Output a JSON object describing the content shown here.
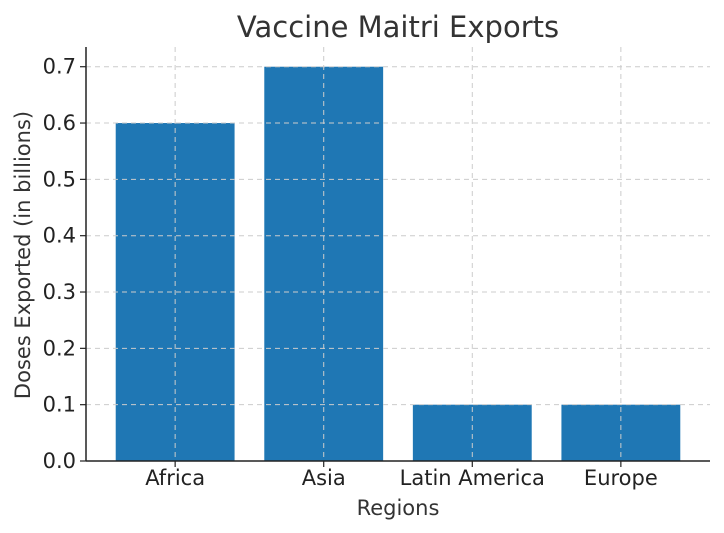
{
  "chart_data": {
    "type": "bar",
    "title": "Vaccine Maitri Exports",
    "xlabel": "Regions",
    "ylabel": "Doses Exported (in billions)",
    "categories": [
      "Africa",
      "Asia",
      "Latin America",
      "Europe"
    ],
    "values": [
      0.6,
      0.7,
      0.1,
      0.1
    ],
    "ylim": [
      0,
      0.735
    ],
    "yticks": [
      "0.0",
      "0.1",
      "0.2",
      "0.3",
      "0.4",
      "0.5",
      "0.6",
      "0.7"
    ],
    "grid": true,
    "bar_color": "#1f77b4"
  }
}
